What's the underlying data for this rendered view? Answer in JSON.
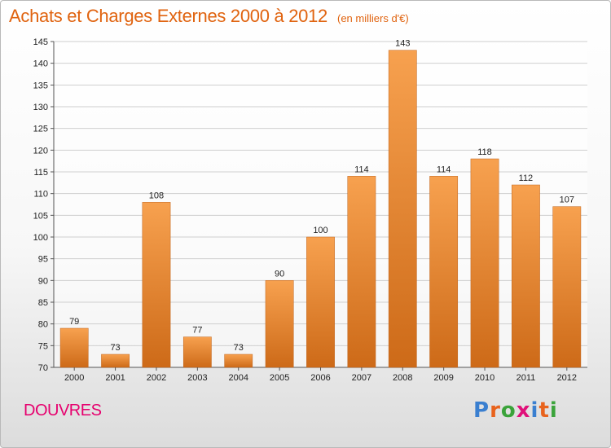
{
  "header": {
    "title": "Achats et Charges Externes 2000 à 2012",
    "unit": "(en milliers d'€)"
  },
  "footer": {
    "place": "DOUVRES",
    "logo": [
      "P",
      "r",
      "o",
      "x",
      "i",
      "t",
      "i"
    ]
  },
  "colors": {
    "title": "#e0630f",
    "place": "#e6006e",
    "bar_top": "#f7a14f",
    "bar_bottom": "#cd6a18",
    "logo": [
      "#3a7fd0",
      "#e8631d",
      "#3aa33a",
      "#e0107a",
      "#3a7fd0",
      "#e8631d",
      "#3aa33a"
    ]
  },
  "chart_data": {
    "type": "bar",
    "categories": [
      "2000",
      "2001",
      "2002",
      "2003",
      "2004",
      "2005",
      "2006",
      "2007",
      "2008",
      "2009",
      "2010",
      "2011",
      "2012"
    ],
    "values": [
      79,
      73,
      108,
      77,
      73,
      90,
      100,
      114,
      143,
      114,
      118,
      112,
      107
    ],
    "value_labels": [
      "79",
      "73",
      "108",
      "77",
      "73",
      "90",
      "100",
      "114",
      "143",
      "114",
      "118",
      "112",
      "107"
    ],
    "ylim": [
      70,
      145
    ],
    "yticks": [
      70,
      75,
      80,
      85,
      90,
      95,
      100,
      105,
      110,
      115,
      120,
      125,
      130,
      135,
      140,
      145
    ],
    "ytick_labels": [
      "70",
      "75",
      "80",
      "85",
      "90",
      "95",
      "100",
      "105",
      "110",
      "115",
      "120",
      "125",
      "130",
      "135",
      "140",
      "145"
    ],
    "grid": true
  }
}
